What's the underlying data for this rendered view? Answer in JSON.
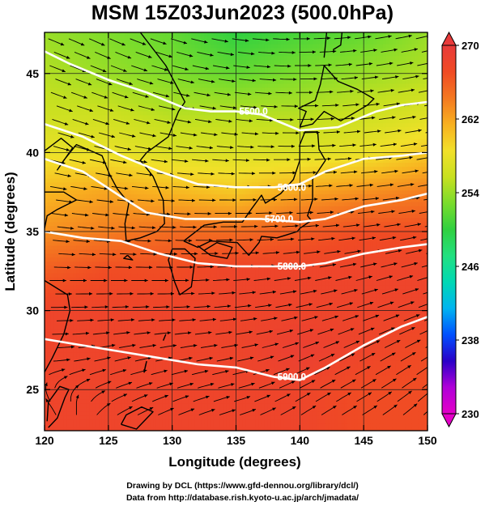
{
  "title": "MSM 15Z03Jun2023 (500.0hPa)",
  "x_axis": {
    "label": "Longitude (degrees)",
    "range": [
      120,
      150
    ],
    "ticks": [
      120,
      125,
      130,
      135,
      140,
      145,
      150
    ],
    "tick_labels": [
      "120",
      "125",
      "130",
      "135",
      "140",
      "145",
      "150"
    ]
  },
  "y_axis": {
    "label": "Latitude  (degrees)",
    "range": [
      22.4,
      47.6
    ],
    "ticks": [
      25,
      30,
      35,
      40,
      45
    ],
    "tick_labels": [
      "25",
      "30",
      "35",
      "40",
      "45"
    ]
  },
  "colorbar": {
    "min": 230,
    "max": 270,
    "tick_values": [
      230,
      238,
      246,
      254,
      262,
      270
    ],
    "tick_labels": [
      "230",
      "238",
      "246",
      "254",
      "262",
      "270"
    ],
    "colors": [
      "#e400c8",
      "#b000d8",
      "#2a00c8",
      "#0050ff",
      "#00b4f0",
      "#00d8b4",
      "#22e080",
      "#30d040",
      "#7adc2c",
      "#c8e020",
      "#f2e02a",
      "#f8b020",
      "#f47820",
      "#f04a24",
      "#e83a3a"
    ]
  },
  "contours": [
    {
      "label": "5500.0"
    },
    {
      "label": "5600.0"
    },
    {
      "label": "5700.0"
    },
    {
      "label": "5800.0"
    },
    {
      "label": "5900.0"
    }
  ],
  "credits": [
    "Drawing by DCL (https://www.gfd-dennou.org/library/dcl/)",
    "Data from http://database.rish.kyoto-u.ac.jp/arch/jmadata/"
  ],
  "chart_data": {
    "type": "heatmap",
    "title": "MSM 15Z03Jun2023 (500.0hPa)",
    "xlabel": "Longitude (degrees)",
    "ylabel": "Latitude  (degrees)",
    "xlim": [
      120,
      150
    ],
    "ylim": [
      22.4,
      47.6
    ],
    "colorbar_range": [
      230,
      270
    ],
    "temperature_field": {
      "lats": [
        47.5,
        45,
        42.5,
        40,
        37.5,
        35,
        32.5,
        30,
        27.5,
        25,
        22.5
      ],
      "lons": [
        120,
        125,
        130,
        135,
        140,
        145,
        150
      ],
      "values": [
        [
          254,
          253,
          252,
          250,
          251,
          252,
          254
        ],
        [
          255,
          254,
          253,
          252,
          253,
          254,
          255
        ],
        [
          256,
          256,
          255,
          255,
          255,
          256,
          257
        ],
        [
          258,
          258,
          257,
          257,
          257,
          258,
          260
        ],
        [
          261,
          262,
          261,
          260,
          262,
          263,
          264
        ],
        [
          263,
          264,
          265,
          265,
          266,
          267,
          267
        ],
        [
          266,
          267,
          267,
          268,
          268,
          268,
          268
        ],
        [
          268,
          268,
          268,
          268,
          268,
          268,
          268
        ],
        [
          268,
          268,
          268,
          268,
          269,
          268,
          267
        ],
        [
          268,
          268,
          268,
          268,
          268,
          267,
          267
        ],
        [
          268,
          268,
          268,
          268,
          268,
          267,
          267
        ]
      ]
    },
    "height_contours_m": [
      {
        "value": 5500,
        "points": [
          [
            120,
            46.4
          ],
          [
            122,
            45.6
          ],
          [
            125,
            44.6
          ],
          [
            128,
            43.8
          ],
          [
            131,
            42.8
          ],
          [
            133,
            42.6
          ],
          [
            135,
            42.6
          ],
          [
            137,
            42.4
          ],
          [
            140,
            41.4
          ],
          [
            143,
            41.6
          ],
          [
            146,
            42.6
          ],
          [
            148,
            43.0
          ],
          [
            150,
            43.2
          ]
        ]
      },
      {
        "value": 5600,
        "points": [
          [
            120,
            41.8
          ],
          [
            123,
            41.0
          ],
          [
            126,
            39.8
          ],
          [
            129,
            38.8
          ],
          [
            132,
            38.0
          ],
          [
            135,
            37.8
          ],
          [
            138,
            37.8
          ],
          [
            140,
            38.0
          ],
          [
            142,
            38.8
          ],
          [
            145,
            39.6
          ],
          [
            148,
            39.8
          ],
          [
            150,
            40.0
          ]
        ]
      },
      {
        "value": 5700,
        "points": [
          [
            120,
            39.6
          ],
          [
            123,
            38.8
          ],
          [
            126,
            37.2
          ],
          [
            128,
            36.2
          ],
          [
            131,
            35.8
          ],
          [
            134,
            35.8
          ],
          [
            137,
            35.8
          ],
          [
            140,
            35.6
          ],
          [
            142,
            35.8
          ],
          [
            145,
            36.6
          ],
          [
            148,
            37.0
          ],
          [
            150,
            37.4
          ]
        ]
      },
      {
        "value": 5800,
        "points": [
          [
            120,
            35.0
          ],
          [
            123,
            34.6
          ],
          [
            126,
            34.4
          ],
          [
            129,
            33.6
          ],
          [
            132,
            33.0
          ],
          [
            135,
            32.8
          ],
          [
            138,
            32.8
          ],
          [
            140,
            32.8
          ],
          [
            142,
            33.0
          ],
          [
            145,
            33.6
          ],
          [
            148,
            34.0
          ],
          [
            150,
            34.2
          ]
        ]
      },
      {
        "value": 5900,
        "points": [
          [
            120,
            28.2
          ],
          [
            123,
            27.8
          ],
          [
            126,
            27.4
          ],
          [
            129,
            27.0
          ],
          [
            132,
            26.6
          ],
          [
            135,
            26.4
          ],
          [
            138,
            25.8
          ],
          [
            140,
            25.6
          ],
          [
            142,
            26.4
          ],
          [
            145,
            27.8
          ],
          [
            148,
            29.0
          ],
          [
            150,
            29.6
          ]
        ]
      }
    ],
    "wind_sample": {
      "lats": [
        47,
        42,
        37,
        32,
        27,
        24
      ],
      "lons": [
        120,
        125,
        130,
        135,
        140,
        145,
        150
      ],
      "u_ms": [
        [
          12,
          14,
          16,
          18,
          18,
          17,
          16
        ],
        [
          14,
          16,
          18,
          20,
          22,
          22,
          20
        ],
        [
          16,
          20,
          24,
          26,
          26,
          24,
          22
        ],
        [
          10,
          12,
          14,
          14,
          14,
          14,
          12
        ],
        [
          4,
          5,
          6,
          6,
          6,
          7,
          6
        ],
        [
          -2,
          2,
          3,
          4,
          4,
          6,
          4
        ]
      ],
      "v_ms": [
        [
          -4,
          -5,
          -4,
          -2,
          0,
          2,
          3
        ],
        [
          -4,
          -4,
          -3,
          -2,
          0,
          2,
          3
        ],
        [
          -2,
          -2,
          -1,
          0,
          1,
          2,
          3
        ],
        [
          0,
          0,
          0,
          1,
          2,
          3,
          3
        ],
        [
          0,
          1,
          1,
          1,
          2,
          3,
          3
        ],
        [
          2,
          1,
          1,
          1,
          2,
          3,
          3
        ]
      ]
    }
  }
}
